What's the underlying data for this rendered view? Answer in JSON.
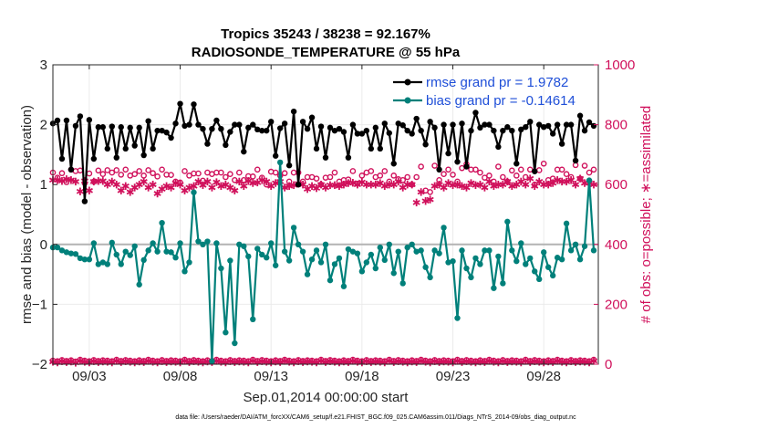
{
  "chart_data": {
    "type": "line",
    "title_line1": "Tropics 35243 / 38238 = 92.167%",
    "title_line2": "RADIOSONDE_TEMPERATURE @ 55 hPa",
    "xlabel": "Sep.01,2014 00:00:00 start",
    "ylabel_left": "rmse and bias (model - observation)",
    "ylabel_right": "# of obs: o=possible; ∗=assimilated",
    "xlim": [
      1,
      31
    ],
    "ylim_left": [
      -2,
      3
    ],
    "ylim_right": [
      0,
      1000
    ],
    "x_ticks": [
      3,
      8,
      13,
      18,
      23,
      28
    ],
    "x_tick_labels": [
      "09/03",
      "09/08",
      "09/13",
      "09/18",
      "09/23",
      "09/28"
    ],
    "y_ticks_left": [
      -2,
      -1,
      0,
      1,
      2,
      3
    ],
    "y_tick_labels_left": [
      "−2",
      "−1",
      "0",
      "1",
      "2",
      "3"
    ],
    "y_ticks_right": [
      0,
      200,
      400,
      600,
      800,
      1000
    ],
    "y_tick_labels_right": [
      "0",
      "200",
      "400",
      "600",
      "800",
      "1000"
    ],
    "footnote": "data file: /Users/raeder/DAI/ATM_forcXX/CAM6_setup/f.e21.FHIST_BGC.f09_025.CAM6assim.011/Diags_NTrS_2014-09/obs_diag_output.nc",
    "legend": {
      "rmse": "rmse grand pr = 1.9782",
      "bias": "bias grand pr = -0.14614"
    },
    "colors": {
      "rmse": "#000000",
      "bias": "#00807a",
      "obs": "#d0105b",
      "zero_line": "#b3b3b3",
      "legend_text": "#1f4fd8"
    },
    "x": [
      1.0,
      1.25,
      1.5,
      1.75,
      2.0,
      2.25,
      2.5,
      2.75,
      3.0,
      3.25,
      3.5,
      3.75,
      4.0,
      4.25,
      4.5,
      4.75,
      5.0,
      5.25,
      5.5,
      5.75,
      6.0,
      6.25,
      6.5,
      6.75,
      7.0,
      7.25,
      7.5,
      7.75,
      8.0,
      8.25,
      8.5,
      8.75,
      9.0,
      9.25,
      9.5,
      9.75,
      10.0,
      10.25,
      10.5,
      10.75,
      11.0,
      11.25,
      11.5,
      11.75,
      12.0,
      12.25,
      12.5,
      12.75,
      13.0,
      13.25,
      13.5,
      13.75,
      14.0,
      14.25,
      14.5,
      14.75,
      15.0,
      15.25,
      15.5,
      15.75,
      16.0,
      16.25,
      16.5,
      16.75,
      17.0,
      17.25,
      17.5,
      17.75,
      18.0,
      18.25,
      18.5,
      18.75,
      19.0,
      19.25,
      19.5,
      19.75,
      20.0,
      20.25,
      20.5,
      20.75,
      21.0,
      21.25,
      21.5,
      21.75,
      22.0,
      22.25,
      22.5,
      22.75,
      23.0,
      23.25,
      23.5,
      23.75,
      24.0,
      24.25,
      24.5,
      24.75,
      25.0,
      25.25,
      25.5,
      25.75,
      26.0,
      26.25,
      26.5,
      26.75,
      27.0,
      27.25,
      27.5,
      27.75,
      28.0,
      28.25,
      28.5,
      28.75,
      29.0,
      29.25,
      29.5,
      29.75,
      30.0,
      30.25,
      30.5,
      30.75
    ],
    "series": [
      {
        "name": "rmse",
        "axis": "left",
        "values": [
          2.02,
          2.07,
          1.43,
          2.07,
          1.25,
          1.98,
          2.14,
          0.72,
          2.08,
          1.43,
          1.96,
          1.96,
          1.6,
          1.97,
          1.45,
          1.96,
          1.6,
          1.95,
          1.65,
          1.95,
          1.49,
          2.06,
          1.6,
          1.9,
          1.9,
          1.87,
          1.78,
          2.02,
          2.35,
          1.98,
          2.0,
          2.34,
          2.0,
          1.93,
          1.68,
          1.93,
          2.07,
          1.93,
          1.66,
          1.88,
          2.0,
          2.0,
          1.55,
          1.95,
          2.0,
          1.92,
          1.9,
          1.9,
          2.05,
          1.48,
          1.94,
          2.02,
          1.32,
          2.22,
          1.0,
          2.05,
          1.93,
          2.12,
          1.6,
          1.97,
          1.45,
          1.95,
          1.9,
          1.93,
          1.88,
          1.45,
          2.0,
          1.85,
          1.85,
          1.9,
          1.6,
          1.95,
          1.6,
          2.02,
          1.86,
          1.35,
          2.02,
          1.99,
          1.9,
          1.85,
          2.1,
          1.9,
          1.67,
          2.05,
          1.95,
          1.25,
          2.0,
          1.52,
          2.0,
          1.38,
          2.02,
          1.3,
          1.9,
          2.2,
          1.95,
          2.0,
          2.0,
          1.9,
          1.63,
          1.9,
          1.96,
          1.9,
          1.35,
          1.92,
          1.96,
          2.05,
          1.22,
          2.0,
          1.96,
          1.98,
          1.85,
          2.0,
          1.68,
          2.0,
          2.0,
          1.4,
          2.15,
          1.9,
          2.04,
          1.98
        ]
      },
      {
        "name": "bias",
        "axis": "left",
        "values": [
          -0.05,
          -0.05,
          -0.1,
          -0.13,
          -0.15,
          -0.16,
          -0.23,
          -0.25,
          -0.25,
          0.02,
          -0.33,
          -0.3,
          -0.33,
          0.03,
          -0.17,
          -0.33,
          -0.12,
          -0.18,
          -0.03,
          -0.67,
          -0.26,
          -0.1,
          0.02,
          -0.12,
          0.36,
          -0.12,
          -0.13,
          -0.22,
          0.02,
          -0.45,
          -0.3,
          0.87,
          0.05,
          0.0,
          0.05,
          -1.95,
          0.02,
          -0.4,
          -1.47,
          -0.27,
          -1.65,
          0.0,
          -0.03,
          -0.2,
          -1.25,
          -0.07,
          -0.17,
          -0.22,
          0.02,
          -0.35,
          1.37,
          -0.12,
          -0.27,
          0.28,
          0.0,
          -0.12,
          -0.5,
          -0.25,
          -0.1,
          -0.3,
          0.0,
          -0.6,
          -0.33,
          -0.23,
          -0.7,
          -0.08,
          -0.12,
          -0.15,
          -0.45,
          -0.3,
          -0.17,
          -0.4,
          -0.05,
          -0.26,
          0.0,
          -0.48,
          -0.12,
          -0.65,
          -0.05,
          0.0,
          -0.12,
          -0.1,
          -0.38,
          -0.55,
          -0.1,
          -0.15,
          0.28,
          -0.3,
          -0.28,
          -1.23,
          -0.1,
          -0.4,
          -0.55,
          -0.23,
          -0.33,
          -0.1,
          -0.1,
          -0.73,
          -0.2,
          -0.65,
          0.38,
          -0.1,
          -0.28,
          0.02,
          -0.33,
          -0.23,
          -0.45,
          -0.58,
          -0.13,
          -0.38,
          -0.52,
          -0.22,
          -0.25,
          0.35,
          -0.1,
          0.0,
          -0.25,
          -0.03,
          1.07,
          -0.1
        ]
      },
      {
        "name": "obs_possible",
        "axis": "right",
        "values": [
          640,
          623,
          638,
          608,
          650,
          645,
          647,
          605,
          637,
          610,
          647,
          635,
          648,
          640,
          648,
          633,
          650,
          630,
          635,
          645,
          630,
          648,
          638,
          627,
          650,
          633,
          632,
          610,
          607,
          645,
          630,
          637,
          637,
          613,
          640,
          635,
          640,
          640,
          625,
          635,
          615,
          640,
          615,
          628,
          627,
          650,
          623,
          600,
          643,
          640,
          630,
          638,
          610,
          640,
          640,
          610,
          625,
          625,
          620,
          600,
          623,
          625,
          640,
          610,
          615,
          617,
          645,
          603,
          630,
          640,
          645,
          625,
          630,
          645,
          610,
          630,
          618,
          615,
          625,
          600,
          625,
          660,
          580,
          575,
          663,
          615,
          635,
          650,
          633,
          610,
          655,
          668,
          650,
          650,
          640,
          623,
          630,
          610,
          660,
          625,
          610,
          647,
          630,
          650,
          625,
          650,
          600,
          648,
          670,
          615,
          620,
          650,
          650,
          635,
          625,
          665,
          620,
          663,
          640,
          650
        ]
      },
      {
        "name": "obs_assimilated",
        "axis": "right",
        "values": [
          615,
          615,
          612,
          618,
          615,
          610,
          577,
          612,
          580,
          610,
          612,
          612,
          600,
          610,
          600,
          580,
          595,
          575,
          590,
          600,
          610,
          590,
          600,
          570,
          585,
          595,
          590,
          605,
          600,
          580,
          590,
          595,
          610,
          598,
          610,
          590,
          608,
          595,
          600,
          590,
          580,
          610,
          595,
          612,
          605,
          607,
          615,
          610,
          595,
          605,
          610,
          590,
          595,
          598,
          603,
          600,
          585,
          595,
          588,
          600,
          590,
          598,
          598,
          595,
          600,
          605,
          606,
          600,
          608,
          600,
          600,
          600,
          605,
          595,
          600,
          600,
          610,
          590,
          600,
          600,
          540,
          575,
          545,
          550,
          595,
          600,
          590,
          605,
          598,
          600,
          595,
          590,
          605,
          598,
          600,
          590,
          610,
          595,
          600,
          600,
          610,
          595,
          600,
          610,
          600,
          620,
          595,
          610,
          600,
          600,
          605,
          615,
          610,
          610,
          615,
          600,
          620,
          605,
          605,
          600
        ]
      },
      {
        "name": "obs_possible_bottom",
        "axis": "right",
        "values": [
          12,
          10,
          14,
          11,
          13,
          9,
          15,
          12,
          10,
          14,
          11,
          13,
          12,
          10,
          15,
          11,
          14,
          12,
          10,
          13,
          11,
          15,
          12,
          10,
          14,
          11,
          13,
          12,
          10,
          15,
          11,
          14,
          12,
          10,
          13,
          11,
          15,
          12,
          10,
          14,
          11,
          13,
          12,
          10,
          15,
          11,
          14,
          12,
          10,
          13,
          11,
          15,
          12,
          10,
          14,
          11,
          13,
          12,
          10,
          15,
          11,
          14,
          12,
          10,
          13,
          11,
          15,
          12,
          10,
          14,
          11,
          13,
          12,
          10,
          15,
          11,
          14,
          12,
          10,
          13,
          11,
          15,
          12,
          10,
          14,
          11,
          13,
          12,
          10,
          15,
          11,
          14,
          12,
          10,
          13,
          11,
          15,
          12,
          10,
          14,
          11,
          13,
          12,
          10,
          15,
          11,
          14,
          12,
          10,
          13,
          11,
          15,
          12,
          10,
          14,
          11,
          13,
          12,
          10,
          15
        ]
      },
      {
        "name": "obs_assimilated_bottom",
        "axis": "right",
        "values": [
          8,
          6,
          10,
          7,
          9,
          5,
          11,
          8,
          6,
          10,
          7,
          9,
          8,
          6,
          11,
          7,
          10,
          8,
          6,
          9,
          7,
          11,
          8,
          6,
          10,
          7,
          9,
          8,
          6,
          11,
          7,
          10,
          8,
          6,
          9,
          7,
          11,
          8,
          6,
          10,
          7,
          9,
          8,
          6,
          11,
          7,
          10,
          8,
          6,
          9,
          7,
          11,
          8,
          6,
          10,
          7,
          9,
          8,
          6,
          11,
          7,
          10,
          8,
          6,
          9,
          7,
          11,
          8,
          6,
          10,
          7,
          9,
          8,
          6,
          11,
          7,
          10,
          8,
          6,
          9,
          7,
          11,
          8,
          6,
          10,
          7,
          9,
          8,
          6,
          11,
          7,
          10,
          8,
          6,
          9,
          7,
          11,
          8,
          6,
          10,
          7,
          9,
          8,
          6,
          11,
          7,
          10,
          8,
          6,
          9,
          7,
          11,
          8,
          6,
          10,
          7,
          9,
          8,
          6,
          11
        ]
      }
    ]
  }
}
